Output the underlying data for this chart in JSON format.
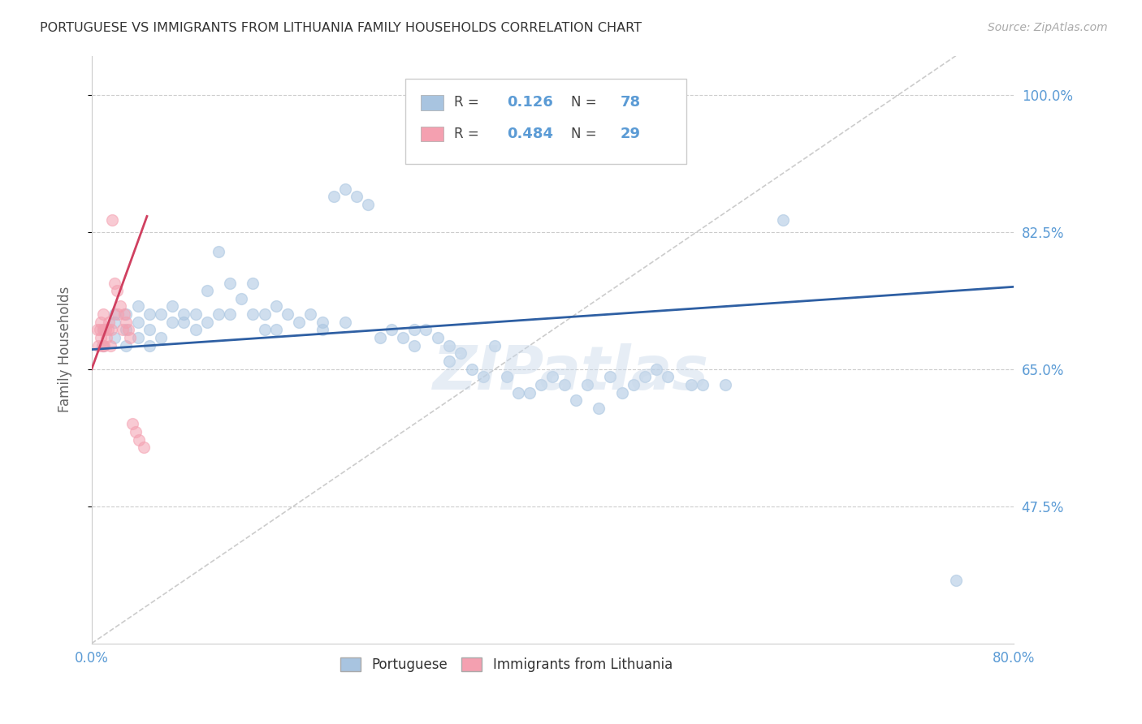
{
  "title": "PORTUGUESE VS IMMIGRANTS FROM LITHUANIA FAMILY HOUSEHOLDS CORRELATION CHART",
  "source": "Source: ZipAtlas.com",
  "xlim": [
    0.0,
    0.8
  ],
  "ylim": [
    0.3,
    1.05
  ],
  "yticks": [
    1.0,
    0.825,
    0.65,
    0.475
  ],
  "xticks": [
    0.0,
    0.1,
    0.2,
    0.3,
    0.4,
    0.5,
    0.6,
    0.7,
    0.8
  ],
  "blue_R": 0.126,
  "blue_N": 78,
  "pink_R": 0.484,
  "pink_N": 29,
  "blue_color": "#a8c4e0",
  "pink_color": "#f4a0b0",
  "blue_line_color": "#2e5fa3",
  "pink_line_color": "#d04060",
  "diagonal_color": "#cccccc",
  "title_color": "#333333",
  "axis_color": "#5b9bd5",
  "watermark": "ZIPatlas",
  "blue_scatter_x": [
    0.01,
    0.01,
    0.02,
    0.02,
    0.02,
    0.03,
    0.03,
    0.03,
    0.04,
    0.04,
    0.04,
    0.05,
    0.05,
    0.05,
    0.06,
    0.06,
    0.07,
    0.07,
    0.08,
    0.08,
    0.09,
    0.09,
    0.1,
    0.1,
    0.11,
    0.11,
    0.12,
    0.12,
    0.13,
    0.14,
    0.14,
    0.15,
    0.15,
    0.16,
    0.16,
    0.17,
    0.18,
    0.19,
    0.2,
    0.2,
    0.21,
    0.22,
    0.22,
    0.23,
    0.24,
    0.25,
    0.26,
    0.27,
    0.28,
    0.28,
    0.29,
    0.3,
    0.31,
    0.31,
    0.32,
    0.33,
    0.34,
    0.35,
    0.36,
    0.37,
    0.38,
    0.39,
    0.4,
    0.41,
    0.42,
    0.43,
    0.44,
    0.45,
    0.46,
    0.47,
    0.48,
    0.49,
    0.5,
    0.52,
    0.53,
    0.55,
    0.6,
    0.75
  ],
  "blue_scatter_y": [
    0.7,
    0.68,
    0.72,
    0.69,
    0.71,
    0.7,
    0.72,
    0.68,
    0.71,
    0.69,
    0.73,
    0.7,
    0.72,
    0.68,
    0.72,
    0.69,
    0.71,
    0.73,
    0.71,
    0.72,
    0.7,
    0.72,
    0.75,
    0.71,
    0.8,
    0.72,
    0.76,
    0.72,
    0.74,
    0.72,
    0.76,
    0.72,
    0.7,
    0.73,
    0.7,
    0.72,
    0.71,
    0.72,
    0.71,
    0.7,
    0.87,
    0.88,
    0.71,
    0.87,
    0.86,
    0.69,
    0.7,
    0.69,
    0.68,
    0.7,
    0.7,
    0.69,
    0.68,
    0.66,
    0.67,
    0.65,
    0.64,
    0.68,
    0.64,
    0.62,
    0.62,
    0.63,
    0.64,
    0.63,
    0.61,
    0.63,
    0.6,
    0.64,
    0.62,
    0.63,
    0.64,
    0.65,
    0.64,
    0.63,
    0.63,
    0.63,
    0.84,
    0.38
  ],
  "pink_scatter_x": [
    0.005,
    0.006,
    0.007,
    0.008,
    0.008,
    0.009,
    0.01,
    0.01,
    0.011,
    0.012,
    0.013,
    0.014,
    0.015,
    0.016,
    0.017,
    0.018,
    0.02,
    0.022,
    0.023,
    0.025,
    0.027,
    0.028,
    0.03,
    0.032,
    0.033,
    0.035,
    0.038,
    0.041,
    0.045
  ],
  "pink_scatter_y": [
    0.7,
    0.68,
    0.7,
    0.69,
    0.71,
    0.68,
    0.7,
    0.72,
    0.68,
    0.7,
    0.69,
    0.7,
    0.71,
    0.68,
    0.7,
    0.84,
    0.76,
    0.75,
    0.72,
    0.73,
    0.7,
    0.72,
    0.71,
    0.7,
    0.69,
    0.58,
    0.57,
    0.56,
    0.55
  ],
  "marker_size": 100,
  "marker_alpha": 0.55
}
